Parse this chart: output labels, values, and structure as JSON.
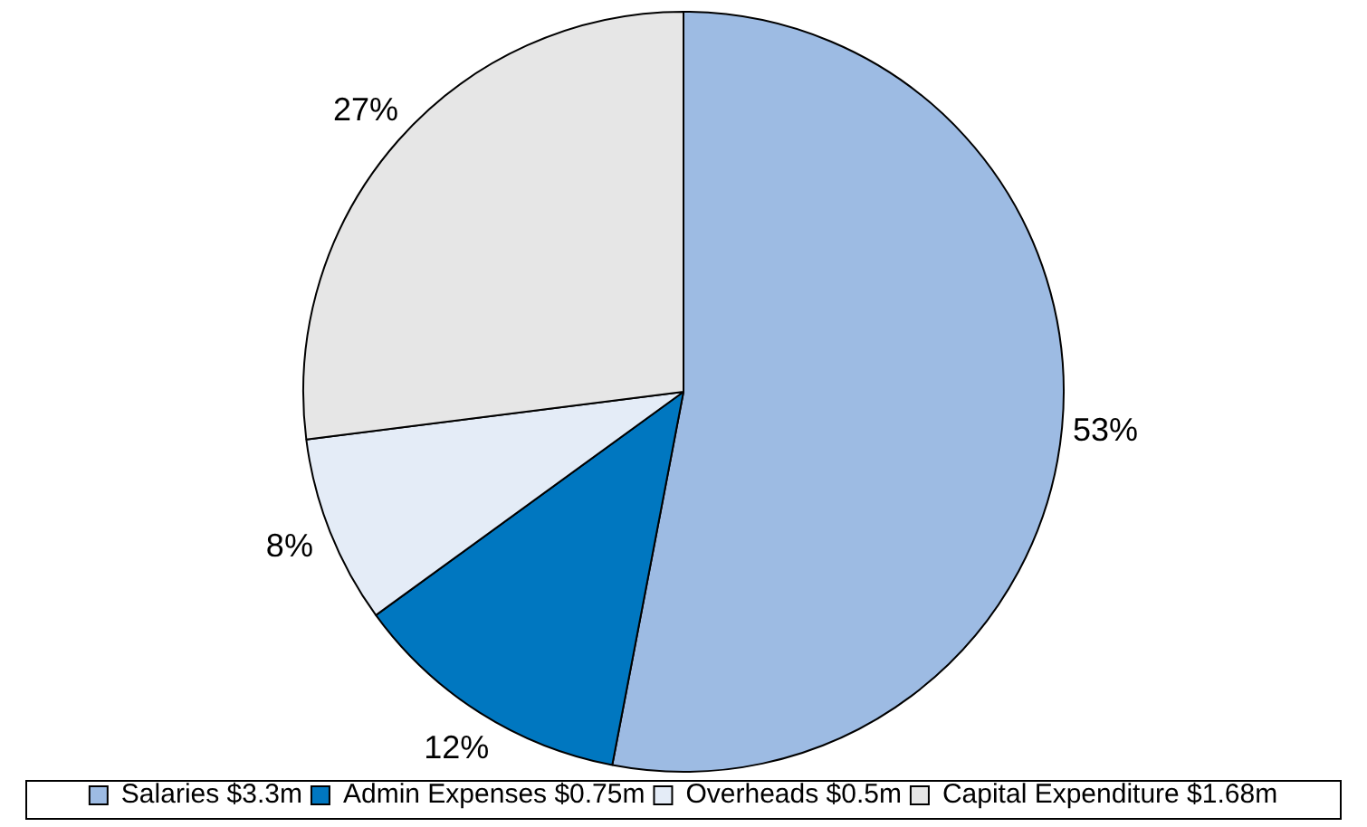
{
  "chart_data": {
    "type": "pie",
    "categories": [
      "Salaries $3.3m",
      "Admin Expenses $0.75m",
      "Overheads $0.5m",
      "Capital Expenditure $1.68m"
    ],
    "values": [
      53,
      12,
      8,
      27
    ],
    "value_labels": [
      "53%",
      "12%",
      "8%",
      "27%"
    ],
    "colors": [
      "#9dbbe3",
      "#0077c0",
      "#e4ecf7",
      "#e6e6e6"
    ],
    "legend": "bottom"
  }
}
